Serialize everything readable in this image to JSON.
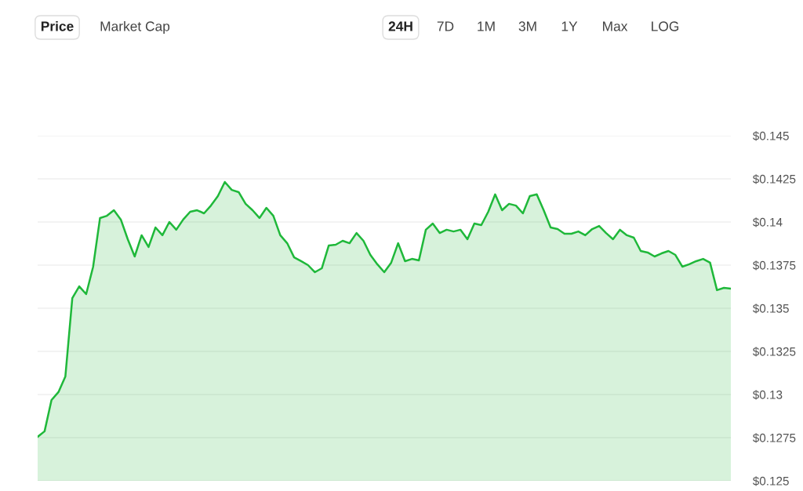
{
  "chart_data": {
    "type": "area",
    "categories": [
      null,
      null,
      null,
      null,
      null,
      null,
      null,
      null,
      null,
      null,
      null,
      null,
      null,
      null,
      null,
      null,
      null,
      null,
      null,
      null,
      null,
      null,
      null,
      null,
      null,
      null,
      null,
      null,
      null,
      null,
      null,
      null,
      null,
      null,
      null,
      null,
      null,
      null,
      null,
      null,
      null,
      null,
      null,
      null,
      null,
      null,
      null,
      null,
      null,
      null,
      null,
      null,
      null,
      null,
      null,
      null,
      null,
      null,
      null,
      null,
      null,
      null,
      null,
      null,
      null,
      null,
      null,
      null,
      null,
      null,
      null,
      null,
      null,
      null,
      null,
      null,
      null,
      null,
      null,
      null,
      null,
      null,
      null,
      null,
      null,
      null,
      null,
      null,
      null,
      null,
      null,
      null,
      null,
      null,
      null,
      null,
      null,
      null,
      null,
      null,
      null
    ],
    "series": [
      {
        "color": "#1fb83a",
        "values": [
          0.12755,
          0.12787,
          0.12968,
          0.13014,
          0.13105,
          0.13559,
          0.13627,
          0.13582,
          0.1374,
          0.14023,
          0.14036,
          0.14068,
          0.14014,
          0.139,
          0.138,
          0.13923,
          0.13855,
          0.13968,
          0.13923,
          0.14,
          0.13955,
          0.14014,
          0.14059,
          0.14068,
          0.1405,
          0.14095,
          0.1415,
          0.14232,
          0.14186,
          0.14173,
          0.14105,
          0.14068,
          0.14023,
          0.14082,
          0.14036,
          0.13923,
          0.13877,
          0.13795,
          0.13773,
          0.1375,
          0.13709,
          0.13732,
          0.13864,
          0.13868,
          0.13891,
          0.13877,
          0.13936,
          0.13891,
          0.13809,
          0.13755,
          0.13709,
          0.13764,
          0.13877,
          0.13773,
          0.13786,
          0.13777,
          0.13955,
          0.13991,
          0.13936,
          0.13955,
          0.13945,
          0.13955,
          0.139,
          0.13991,
          0.13982,
          0.14059,
          0.1416,
          0.14068,
          0.14105,
          0.14095,
          0.1405,
          0.1415,
          0.1416,
          0.14068,
          0.13968,
          0.13959,
          0.13932,
          0.13932,
          0.13945,
          0.13923,
          0.13959,
          0.13977,
          0.13936,
          0.139,
          0.13955,
          0.13923,
          0.13909,
          0.13832,
          0.13823,
          0.138,
          0.13818,
          0.13832,
          0.13809,
          0.13741,
          0.13755,
          0.13773,
          0.13786,
          0.13764,
          0.13605,
          0.13618,
          0.13614
        ]
      }
    ],
    "ylim": [
      0.125,
      0.145
    ],
    "yticks": [
      {
        "value": 0.125,
        "label": "$0.125"
      },
      {
        "value": 0.1275,
        "label": "$0.1275"
      },
      {
        "value": 0.13,
        "label": "$0.13"
      },
      {
        "value": 0.1325,
        "label": "$0.1325"
      },
      {
        "value": 0.135,
        "label": "$0.135"
      },
      {
        "value": 0.1375,
        "label": "$0.1375"
      },
      {
        "value": 0.14,
        "label": "$0.14"
      },
      {
        "value": 0.1425,
        "label": "$0.1425"
      },
      {
        "value": 0.145,
        "label": "$0.145"
      }
    ],
    "grid": "y",
    "annotations": [
      "Price",
      "Market Cap",
      "24H",
      "7D",
      "1M",
      "3M",
      "1Y",
      "Max",
      "LOG"
    ]
  }
}
